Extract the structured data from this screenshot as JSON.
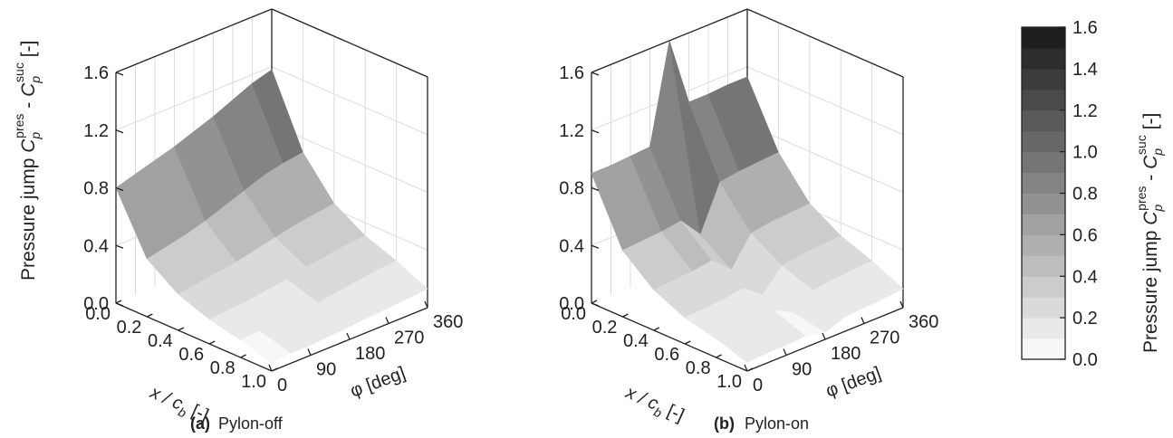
{
  "chart_data": [
    {
      "type": "surface",
      "panel_label": "(a)",
      "caption": "Pylon-off",
      "zlabel_main": "Pressure jump",
      "zlabel_pres": "pres",
      "zlabel_suc": "suc",
      "zlabel_unit": "[-]",
      "xlabel": "x / c",
      "xlabel_sub": "b",
      "xlabel_unit": "[-]",
      "ylabel": "φ [deg]",
      "xticks": [
        "0.0",
        "0.2",
        "0.4",
        "0.6",
        "0.8",
        "1.0"
      ],
      "yticks": [
        "0",
        "90",
        "180",
        "270",
        "360"
      ],
      "zticks": [
        "0.0",
        "0.4",
        "0.8",
        "1.2",
        "1.6"
      ],
      "xlim": [
        0,
        1
      ],
      "ylim": [
        0,
        360
      ],
      "zlim": [
        0,
        1.6
      ],
      "x": [
        0.0,
        0.2,
        0.4,
        0.6,
        0.8,
        1.0
      ],
      "phi": [
        0,
        45,
        90,
        135,
        180,
        225,
        270,
        315,
        360
      ],
      "z": [
        [
          0.8,
          0.84,
          0.88,
          0.92,
          0.97,
          1.02,
          1.08,
          1.14,
          1.18
        ],
        [
          0.4,
          0.43,
          0.46,
          0.5,
          0.55,
          0.6,
          0.65,
          0.68,
          0.7
        ],
        [
          0.25,
          0.27,
          0.29,
          0.31,
          0.34,
          0.37,
          0.4,
          0.42,
          0.44
        ],
        [
          0.17,
          0.18,
          0.19,
          0.21,
          0.23,
          0.26,
          0.28,
          0.3,
          0.31
        ],
        [
          0.12,
          0.13,
          0.14,
          0.15,
          0.16,
          0.18,
          0.2,
          0.22,
          0.23
        ],
        [
          0.06,
          0.07,
          0.07,
          0.08,
          0.09,
          0.1,
          0.11,
          0.12,
          0.13
        ]
      ]
    },
    {
      "type": "surface",
      "panel_label": "(b)",
      "caption": "Pylon-on",
      "zlabel_main": "",
      "xlabel": "x / c",
      "xlabel_sub": "b",
      "xlabel_unit": "[-]",
      "ylabel": "φ [deg]",
      "xticks": [
        "0.0",
        "0.2",
        "0.4",
        "0.6",
        "0.8",
        "1.0"
      ],
      "yticks": [
        "0",
        "90",
        "180",
        "270",
        "360"
      ],
      "zticks": [
        "0.0",
        "0.4",
        "0.8",
        "1.2",
        "1.6"
      ],
      "xlim": [
        0,
        1
      ],
      "ylim": [
        0,
        360
      ],
      "zlim": [
        0,
        1.6
      ],
      "x": [
        0.0,
        0.2,
        0.4,
        0.6,
        0.8,
        1.0
      ],
      "phi": [
        0,
        45,
        90,
        135,
        180,
        225,
        270,
        315,
        360
      ],
      "z": [
        [
          0.9,
          0.9,
          0.91,
          0.92,
          1.6,
          1.12,
          1.12,
          1.13,
          1.13
        ],
        [
          0.46,
          0.47,
          0.48,
          0.5,
          0.35,
          0.66,
          0.68,
          0.69,
          0.7
        ],
        [
          0.28,
          0.29,
          0.3,
          0.32,
          0.2,
          0.4,
          0.42,
          0.43,
          0.44
        ],
        [
          0.18,
          0.19,
          0.2,
          0.22,
          0.12,
          0.27,
          0.29,
          0.3,
          0.31
        ],
        [
          0.13,
          0.14,
          0.15,
          0.16,
          0.09,
          0.19,
          0.21,
          0.22,
          0.23
        ],
        [
          0.06,
          0.07,
          0.07,
          0.08,
          0.05,
          0.1,
          0.11,
          0.12,
          0.13
        ]
      ]
    }
  ],
  "colorbar": {
    "ticks": [
      "0.0",
      "0.2",
      "0.4",
      "0.6",
      "0.8",
      "1.0",
      "1.2",
      "1.4",
      "1.6"
    ],
    "range": [
      0,
      1.6
    ],
    "levels": 16,
    "label_main": "Pressure jump",
    "label_pres": "pres",
    "label_suc": "suc",
    "label_unit": "[-]",
    "color_low": "#f7f7f7",
    "color_high": "#1f1f1f"
  }
}
